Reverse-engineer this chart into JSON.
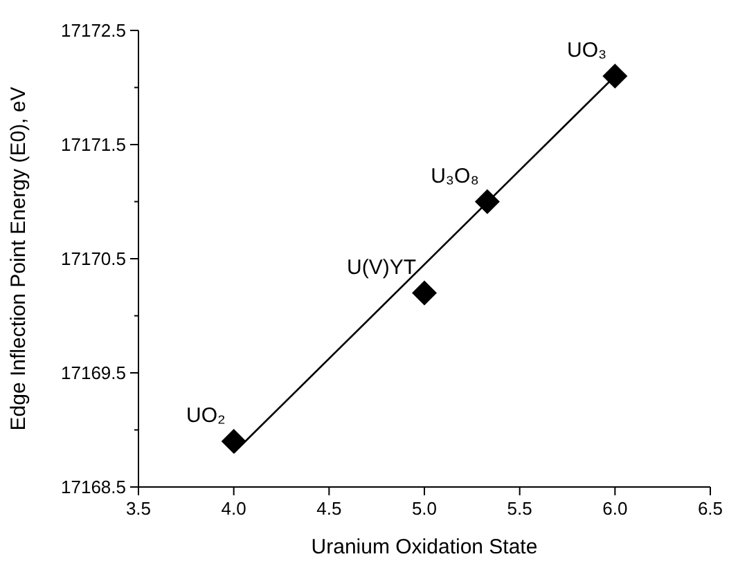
{
  "chart_data": {
    "type": "scatter",
    "xlabel": "Uranium Oxidation State",
    "ylabel": "Edge Inflection Point Energy (E0), eV",
    "xlim": [
      3.5,
      6.5
    ],
    "xticks": [
      3.5,
      {
        "value": 4,
        "label": "4.0"
      },
      4.5,
      {
        "value": 5,
        "label": "5.0"
      },
      5.5,
      {
        "value": 6,
        "label": "6.0"
      },
      6.5
    ],
    "ylim": [
      17168.5,
      17172.5
    ],
    "yticks": [
      17168.5,
      {
        "value": 17169,
        "label": null
      },
      17169.5,
      {
        "value": 17170,
        "label": null
      },
      17170.5,
      {
        "value": 17171,
        "label": null
      },
      17171.5,
      {
        "value": 17172,
        "label": null
      },
      17172.5
    ],
    "grid": false,
    "series": [
      {
        "color": "#000000",
        "marker": "diamond",
        "x": [
          4.0,
          5.0,
          5.33,
          6.0
        ],
        "values": [
          17168.9,
          17170.2,
          17171.0,
          17172.1
        ]
      },
      {
        "type": "line",
        "color": "#000000",
        "x": [
          4.0,
          6.0
        ],
        "values": [
          17168.8,
          17172.1
        ]
      }
    ],
    "annotations": [
      {
        "text": "UO₂",
        "x": 4.0,
        "y": 17168.9
      },
      {
        "text": "U(V)YT",
        "x": 5.0,
        "y": 17170.2
      },
      {
        "text": "U₃O₈",
        "x": 5.33,
        "y": 17171.0
      },
      {
        "text": "UO₃",
        "x": 6.0,
        "y": 17172.1
      }
    ]
  }
}
